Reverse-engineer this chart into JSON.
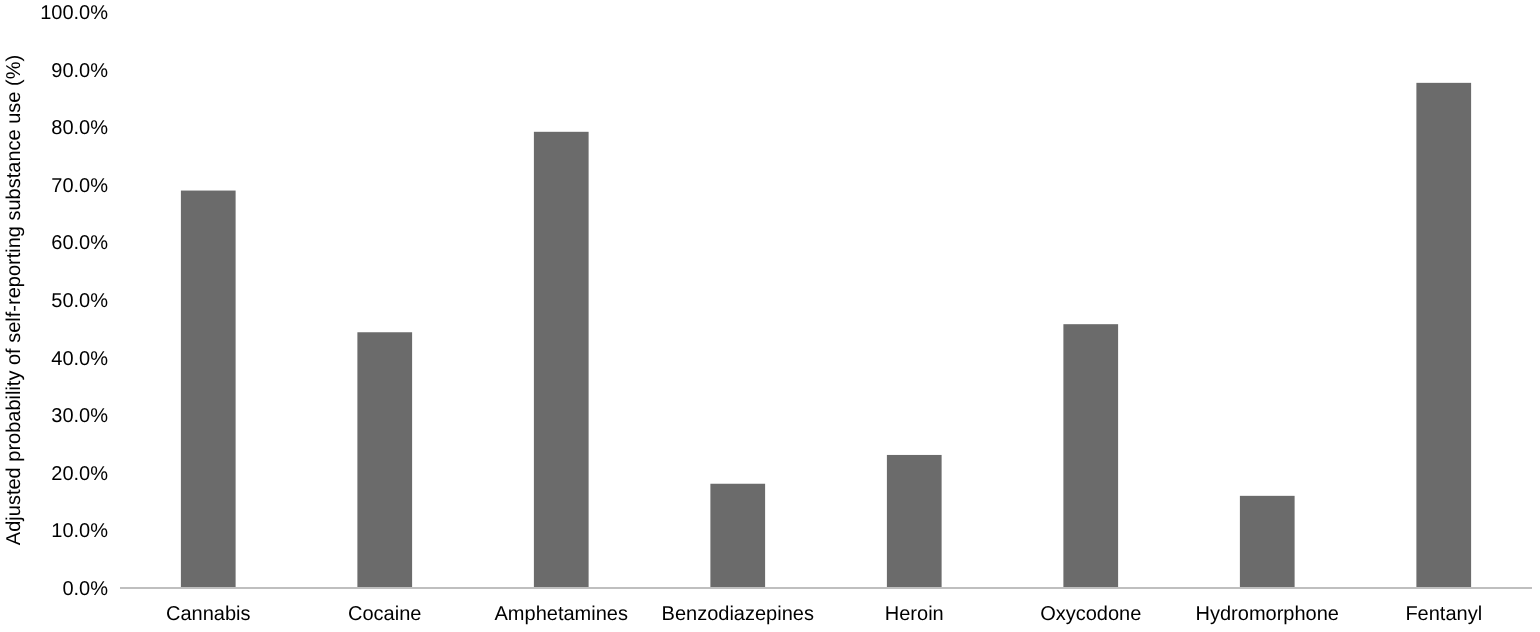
{
  "chart_data": {
    "type": "bar",
    "ylabel": "Adjusted probability of self-reporting substance use (%)",
    "categories": [
      "Cannabis",
      "Cocaine",
      "Amphetamines",
      "Benzodiazepines",
      "Heroin",
      "Oxycodone",
      "Hydromorphone",
      "Fentanyl"
    ],
    "values": [
      69.0,
      44.4,
      79.2,
      18.1,
      23.1,
      45.8,
      16.0,
      87.7
    ],
    "color": "#6b6b6b",
    "ylim": [
      0,
      100
    ],
    "yticks": [
      {
        "value": 0,
        "label": "0.0%"
      },
      {
        "value": 10,
        "label": "10.0%"
      },
      {
        "value": 20,
        "label": "20.0%"
      },
      {
        "value": 30,
        "label": "30.0%"
      },
      {
        "value": 40,
        "label": "40.0%"
      },
      {
        "value": 50,
        "label": "50.0%"
      },
      {
        "value": 60,
        "label": "60.0%"
      },
      {
        "value": 70,
        "label": "70.0%"
      },
      {
        "value": 80,
        "label": "80.0%"
      },
      {
        "value": 90,
        "label": "90.0%"
      },
      {
        "value": 100,
        "label": "100.0%"
      }
    ],
    "grid": false
  }
}
